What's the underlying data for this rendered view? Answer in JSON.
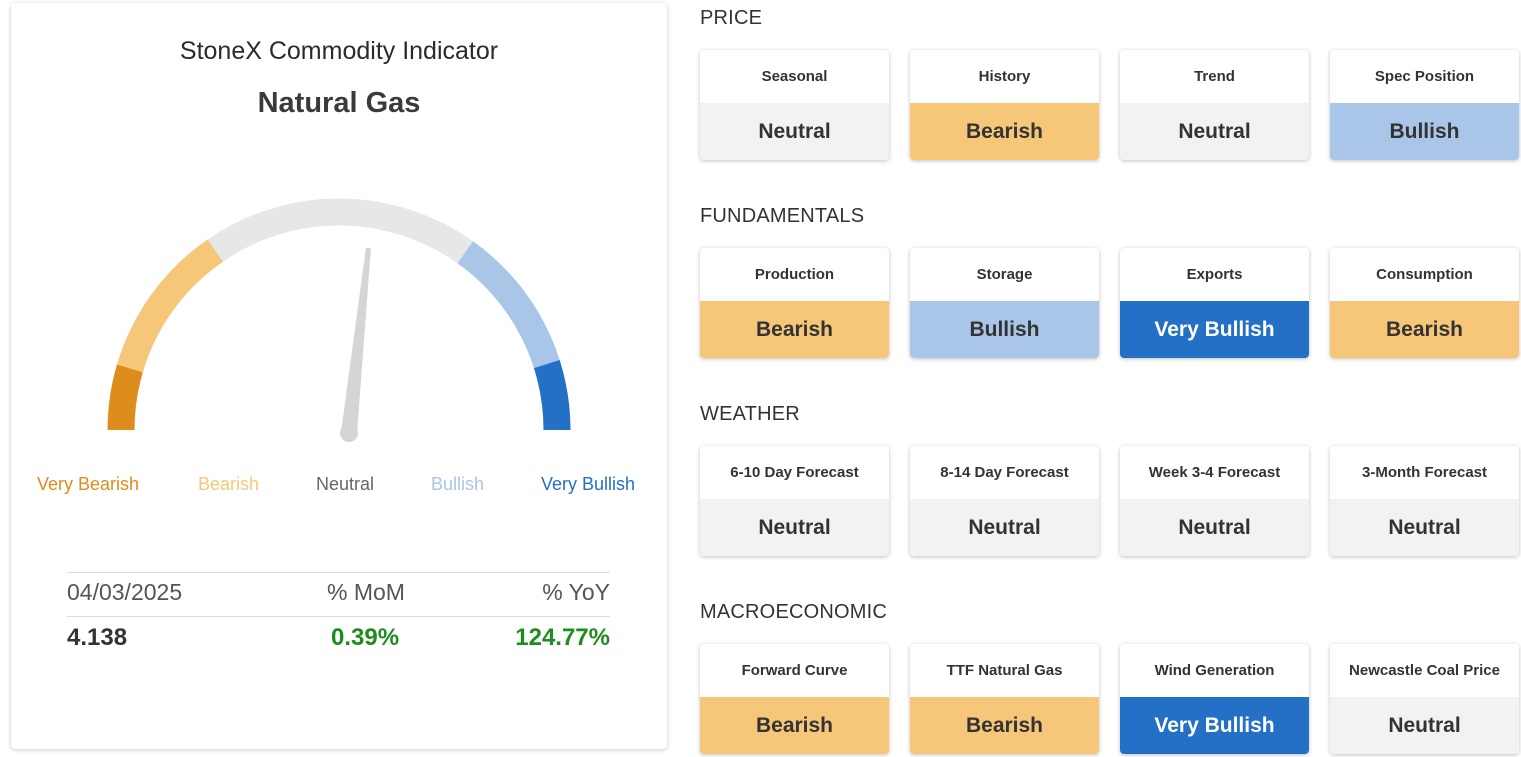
{
  "gauge": {
    "title": "StoneX Commodity Indicator",
    "commodity": "Natural Gas",
    "labels": [
      {
        "text": "Very Bearish",
        "color": "#dc8d1c"
      },
      {
        "text": "Bearish",
        "color": "#f6c778"
      },
      {
        "text": "Neutral",
        "color": "#666666"
      },
      {
        "text": "Bullish",
        "color": "#a9c6e8"
      },
      {
        "text": "Very Bullish",
        "color": "#2470c6"
      }
    ],
    "reading": "Neutral",
    "colors": {
      "very_bearish": "#dc8d1c",
      "bearish": "#f6c778",
      "neutral": "#e6e7e7",
      "bullish": "#a9c6e8",
      "very_bullish": "#2470c6",
      "needle": "#d3d5d6"
    }
  },
  "stats": {
    "date": "04/03/2025",
    "mom_header": "% MoM",
    "yoy_header": "% YoY",
    "price": "4.138",
    "mom": "0.39%",
    "yoy": "124.77%",
    "positive_color": "#1e8c1e"
  },
  "sections": [
    {
      "title": "PRICE",
      "indicators": [
        {
          "label": "Seasonal",
          "signal": "Neutral"
        },
        {
          "label": "History",
          "signal": "Bearish"
        },
        {
          "label": "Trend",
          "signal": "Neutral"
        },
        {
          "label": "Spec Position",
          "signal": "Bullish"
        }
      ]
    },
    {
      "title": "FUNDAMENTALS",
      "indicators": [
        {
          "label": "Production",
          "signal": "Bearish"
        },
        {
          "label": "Storage",
          "signal": "Bullish"
        },
        {
          "label": "Exports",
          "signal": "Very Bullish"
        },
        {
          "label": "Consumption",
          "signal": "Bearish"
        }
      ]
    },
    {
      "title": "WEATHER",
      "indicators": [
        {
          "label": "6-10 Day Forecast",
          "signal": "Neutral"
        },
        {
          "label": "8-14 Day Forecast",
          "signal": "Neutral"
        },
        {
          "label": "Week 3-4 Forecast",
          "signal": "Neutral"
        },
        {
          "label": "3-Month Forecast",
          "signal": "Neutral"
        }
      ]
    },
    {
      "title": "MACROECONOMIC",
      "indicators": [
        {
          "label": "Forward Curve",
          "signal": "Bearish"
        },
        {
          "label": "TTF Natural Gas",
          "signal": "Bearish"
        },
        {
          "label": "Wind Generation",
          "signal": "Very Bullish"
        },
        {
          "label": "Newcastle Coal Price",
          "signal": "Neutral"
        }
      ]
    }
  ]
}
